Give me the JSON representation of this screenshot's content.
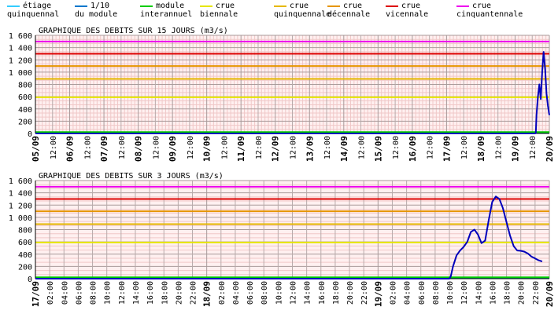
{
  "legend": [
    {
      "line1": "étiage",
      "line2": "quinquennal",
      "color": "#33ccff"
    },
    {
      "line1": "1/10",
      "line2": "du module",
      "color": "#0077cc"
    },
    {
      "line1": "module",
      "line2": "interannuel",
      "color": "#00cc00"
    },
    {
      "line1": "crue",
      "line2": "biennale",
      "color": "#e6e600"
    },
    {
      "line1": "crue",
      "line2": "quinquennale",
      "color": "#e6b800"
    },
    {
      "line1": "crue",
      "line2": "décennale",
      "color": "#e69500"
    },
    {
      "line1": "crue",
      "line2": "vicennale",
      "color": "#dd0000"
    },
    {
      "line1": "crue",
      "line2": "cinquantennale",
      "color": "#ee00ee"
    }
  ],
  "chart_data": [
    {
      "type": "line",
      "title": "GRAPHIQUE DES DEBITS SUR 15 JOURS (m3/s)",
      "ylim": [
        0,
        1600
      ],
      "yticks": [
        "0",
        "200",
        "400",
        "600",
        "800",
        "1 000",
        "1 200",
        "1 400",
        "1 600"
      ],
      "yvalues": [
        0,
        200,
        400,
        600,
        800,
        1000,
        1200,
        1400,
        1600
      ],
      "xlim_hours": [
        0,
        360
      ],
      "xtick_step_hours": 12,
      "xtick_labels": [
        "05/09",
        "12:00",
        "06/09",
        "12:00",
        "07/09",
        "12:00",
        "08/09",
        "12:00",
        "09/09",
        "12:00",
        "10/09",
        "12:00",
        "11/09",
        "12:00",
        "12/09",
        "12:00",
        "13/09",
        "12:00",
        "14/09",
        "12:00",
        "15/09",
        "12:00",
        "16/09",
        "12:00",
        "17/09",
        "12:00",
        "18/09",
        "12:00",
        "19/09",
        "12:00",
        "20/09"
      ],
      "thresholds": [
        {
          "value": 8,
          "color": "#33ccff"
        },
        {
          "value": 12,
          "color": "#0077cc"
        },
        {
          "value": 22,
          "color": "#00cc00"
        },
        {
          "value": 590,
          "color": "#e6e600"
        },
        {
          "value": 890,
          "color": "#e6b800"
        },
        {
          "value": 1100,
          "color": "#e69500"
        },
        {
          "value": 1300,
          "color": "#dd0000"
        },
        {
          "value": 1500,
          "color": "#ee00ee"
        }
      ],
      "series": {
        "color": "#0000bb",
        "x_hours": [
          0,
          350,
          350.5,
          351,
          352,
          353,
          354,
          355,
          356,
          357,
          358,
          359,
          360
        ],
        "y": [
          0,
          0,
          5,
          300,
          600,
          800,
          560,
          1000,
          1330,
          1060,
          650,
          450,
          300
        ]
      }
    },
    {
      "type": "line",
      "title": "GRAPHIQUE DES DEBITS SUR 3 JOURS (m3/s)",
      "ylim": [
        0,
        1600
      ],
      "yticks": [
        "0",
        "200",
        "400",
        "600",
        "800",
        "1 000",
        "1 200",
        "1 400",
        "1 600"
      ],
      "yvalues": [
        0,
        200,
        400,
        600,
        800,
        1000,
        1200,
        1400,
        1600
      ],
      "xlim_hours": [
        0,
        72
      ],
      "xtick_step_hours": 2,
      "xtick_labels": [
        "17/09",
        "02:00",
        "04:00",
        "06:00",
        "08:00",
        "10:00",
        "12:00",
        "14:00",
        "16:00",
        "18:00",
        "20:00",
        "22:00",
        "18/09",
        "02:00",
        "04:00",
        "06:00",
        "08:00",
        "10:00",
        "12:00",
        "14:00",
        "16:00",
        "18:00",
        "20:00",
        "22:00",
        "19/09",
        "02:00",
        "04:00",
        "06:00",
        "08:00",
        "10:00",
        "12:00",
        "14:00",
        "16:00",
        "18:00",
        "20:00",
        "22:00",
        "20/09"
      ],
      "thresholds": [
        {
          "value": 8,
          "color": "#33ccff"
        },
        {
          "value": 12,
          "color": "#0077cc"
        },
        {
          "value": 22,
          "color": "#00cc00"
        },
        {
          "value": 590,
          "color": "#e6e600"
        },
        {
          "value": 890,
          "color": "#e6b800"
        },
        {
          "value": 1100,
          "color": "#e69500"
        },
        {
          "value": 1300,
          "color": "#dd0000"
        },
        {
          "value": 1500,
          "color": "#ee00ee"
        }
      ],
      "series": {
        "color": "#0000bb",
        "x_hours": [
          0,
          58,
          58.2,
          58.5,
          59,
          59.5,
          60,
          60.5,
          61,
          61.5,
          62,
          62.5,
          63,
          63.5,
          64,
          64.5,
          65,
          65.5,
          66,
          66.5,
          67,
          67.5,
          68,
          68.5,
          69,
          69.5,
          70,
          70.5,
          71
        ],
        "y": [
          0,
          0,
          40,
          200,
          380,
          460,
          520,
          600,
          760,
          800,
          720,
          580,
          620,
          950,
          1250,
          1340,
          1300,
          1150,
          920,
          700,
          530,
          460,
          455,
          440,
          410,
          360,
          330,
          300,
          280
        ]
      }
    }
  ]
}
